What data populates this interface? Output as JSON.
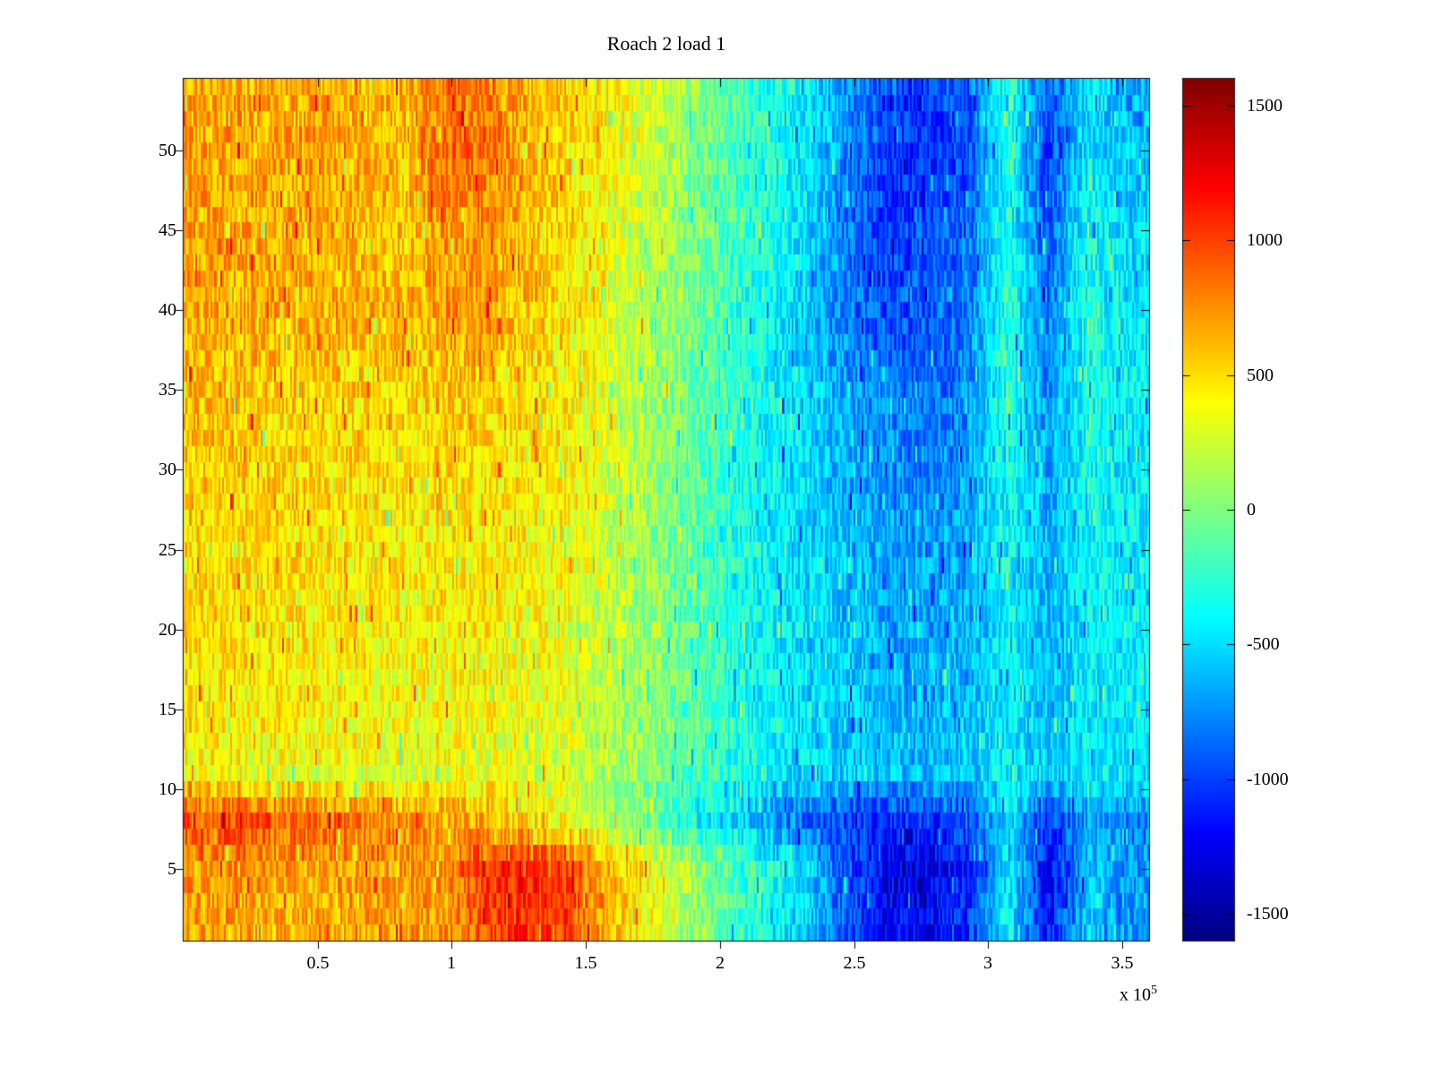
{
  "chart_data": {
    "type": "heatmap",
    "title": "Roach 2 load 1",
    "xlabel": "",
    "ylabel": "",
    "x_axis": {
      "range": [
        0,
        360000
      ],
      "ticks": [
        50000,
        100000,
        150000,
        200000,
        250000,
        300000,
        350000
      ],
      "tick_labels": [
        "0.5",
        "1",
        "1.5",
        "2",
        "2.5",
        "3",
        "3.5"
      ],
      "multiplier_prefix": "x 10",
      "multiplier_exponent": "5"
    },
    "y_axis": {
      "range": [
        1,
        54
      ],
      "ticks": [
        5,
        10,
        15,
        20,
        25,
        30,
        35,
        40,
        45,
        50
      ],
      "tick_labels": [
        "5",
        "10",
        "15",
        "20",
        "25",
        "30",
        "35",
        "40",
        "45",
        "50"
      ]
    },
    "colorbar": {
      "colormap": "jet",
      "clim": [
        -1600,
        1600
      ],
      "ticks": [
        1500,
        1000,
        500,
        0,
        -500,
        -1000,
        -1500
      ],
      "tick_labels": [
        "1500",
        "1000",
        "500",
        "0",
        "-500",
        "-1000",
        "-1500"
      ]
    },
    "grid": {
      "note": "coarse estimate of depicted values, rows ordered top-to-bottom (y=54 first), 24 columns spanning x=0..360000",
      "rows": 18,
      "cols": 24,
      "values": [
        [
          650,
          700,
          620,
          680,
          600,
          640,
          820,
          780,
          650,
          560,
          430,
          280,
          80,
          -120,
          -280,
          -420,
          -700,
          -950,
          -1050,
          -900,
          -250,
          -950,
          -500,
          -650
        ],
        [
          700,
          660,
          700,
          640,
          660,
          620,
          880,
          840,
          620,
          540,
          400,
          250,
          50,
          -150,
          -300,
          -450,
          -750,
          -1000,
          -1100,
          -950,
          -300,
          -1000,
          -450,
          -600
        ],
        [
          680,
          720,
          650,
          700,
          620,
          600,
          800,
          760,
          640,
          520,
          380,
          220,
          30,
          -170,
          -320,
          -480,
          -800,
          -1050,
          -1000,
          -900,
          -350,
          -950,
          -400,
          -550
        ],
        [
          660,
          680,
          640,
          660,
          600,
          580,
          720,
          700,
          600,
          500,
          360,
          200,
          20,
          -180,
          -340,
          -500,
          -820,
          -1000,
          -950,
          -850,
          -300,
          -900,
          -350,
          -500
        ],
        [
          700,
          650,
          680,
          620,
          640,
          600,
          750,
          720,
          580,
          480,
          340,
          180,
          0,
          -200,
          -360,
          -520,
          -840,
          -980,
          -920,
          -820,
          -280,
          -850,
          -300,
          -480
        ],
        [
          640,
          620,
          600,
          640,
          580,
          560,
          680,
          660,
          560,
          460,
          320,
          160,
          -20,
          -220,
          -380,
          -540,
          -800,
          -950,
          -900,
          -800,
          -260,
          -820,
          -280,
          -460
        ],
        [
          600,
          580,
          560,
          540,
          520,
          500,
          560,
          540,
          500,
          440,
          300,
          150,
          -40,
          -230,
          -380,
          -520,
          -700,
          -820,
          -840,
          -760,
          -300,
          -760,
          -320,
          -450
        ],
        [
          580,
          560,
          540,
          520,
          500,
          480,
          520,
          500,
          470,
          410,
          280,
          130,
          -50,
          -240,
          -390,
          -520,
          -660,
          -780,
          -800,
          -720,
          -320,
          -720,
          -340,
          -440
        ],
        [
          560,
          540,
          520,
          500,
          480,
          460,
          490,
          470,
          440,
          390,
          260,
          120,
          -60,
          -250,
          -400,
          -520,
          -640,
          -740,
          -760,
          -700,
          -340,
          -700,
          -360,
          -430
        ],
        [
          540,
          520,
          500,
          480,
          460,
          440,
          460,
          450,
          420,
          370,
          240,
          100,
          -70,
          -260,
          -400,
          -510,
          -620,
          -700,
          -720,
          -680,
          -360,
          -680,
          -380,
          -420
        ],
        [
          520,
          500,
          480,
          460,
          440,
          420,
          440,
          430,
          400,
          350,
          220,
          90,
          -80,
          -260,
          -400,
          -500,
          -600,
          -680,
          -700,
          -660,
          -380,
          -660,
          -400,
          -420
        ],
        [
          500,
          480,
          460,
          440,
          420,
          400,
          420,
          410,
          380,
          330,
          200,
          80,
          -90,
          -270,
          -400,
          -500,
          -580,
          -660,
          -680,
          -640,
          -400,
          -640,
          -410,
          -420
        ],
        [
          480,
          460,
          440,
          420,
          400,
          380,
          400,
          390,
          360,
          310,
          190,
          60,
          -100,
          -270,
          -400,
          -490,
          -570,
          -640,
          -660,
          -620,
          -410,
          -620,
          -420,
          -430
        ],
        [
          460,
          440,
          420,
          400,
          380,
          360,
          380,
          370,
          340,
          290,
          170,
          50,
          -110,
          -280,
          -400,
          -490,
          -560,
          -620,
          -640,
          -600,
          -420,
          -600,
          -430,
          -440
        ],
        [
          380,
          360,
          340,
          330,
          320,
          300,
          320,
          310,
          280,
          240,
          130,
          20,
          -130,
          -290,
          -400,
          -480,
          -550,
          -600,
          -620,
          -580,
          -430,
          -580,
          -440,
          -450
        ],
        [
          950,
          1000,
          920,
          880,
          820,
          760,
          700,
          640,
          500,
          350,
          150,
          -50,
          -300,
          -500,
          -700,
          -850,
          -1000,
          -1100,
          -1050,
          -950,
          -500,
          -1050,
          -700,
          -800
        ],
        [
          750,
          700,
          680,
          700,
          720,
          700,
          750,
          1050,
          1150,
          1080,
          650,
          450,
          150,
          -100,
          -300,
          -500,
          -950,
          -1250,
          -1300,
          -1100,
          -450,
          -1250,
          -600,
          -750
        ],
        [
          700,
          660,
          640,
          660,
          680,
          690,
          720,
          950,
          1050,
          980,
          600,
          400,
          100,
          -150,
          -350,
          -550,
          -900,
          -1200,
          -1250,
          -1050,
          -400,
          -1150,
          -550,
          -700
        ]
      ]
    }
  }
}
